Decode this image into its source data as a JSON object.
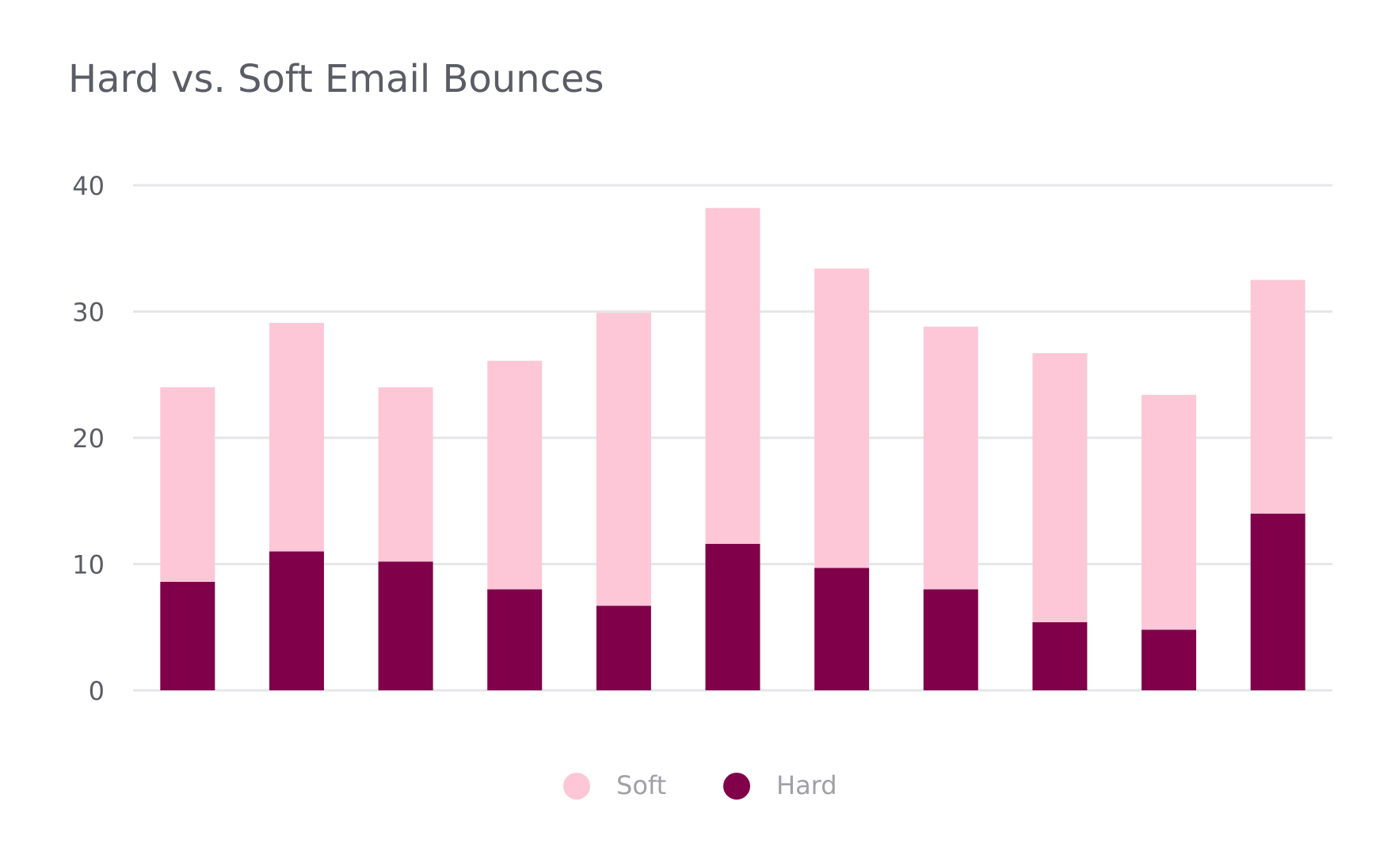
{
  "chart_data": {
    "type": "bar",
    "stacked": true,
    "title": "Hard vs. Soft Email Bounces",
    "xlabel": "",
    "ylabel": "",
    "ylim": [
      0,
      40
    ],
    "yticks": [
      "0",
      "10",
      "20",
      "30",
      "40"
    ],
    "grid": true,
    "legend_position": "bottom",
    "categories": [
      "",
      "",
      "",
      "",
      "",
      "",
      "",
      "",
      "",
      "",
      ""
    ],
    "series": [
      {
        "name": "Hard",
        "color": "#80004A",
        "values": [
          8.6,
          11.0,
          10.2,
          8.0,
          6.7,
          11.6,
          9.7,
          8.0,
          5.4,
          4.8,
          14.0
        ]
      },
      {
        "name": "Soft",
        "color": "#FDC7D7",
        "values": [
          15.4,
          18.1,
          13.8,
          18.1,
          23.2,
          26.6,
          23.7,
          20.8,
          21.3,
          18.6,
          18.5
        ]
      }
    ],
    "legend": [
      {
        "label": "Soft",
        "color": "#FDC7D7"
      },
      {
        "label": "Hard",
        "color": "#80004A"
      }
    ]
  }
}
